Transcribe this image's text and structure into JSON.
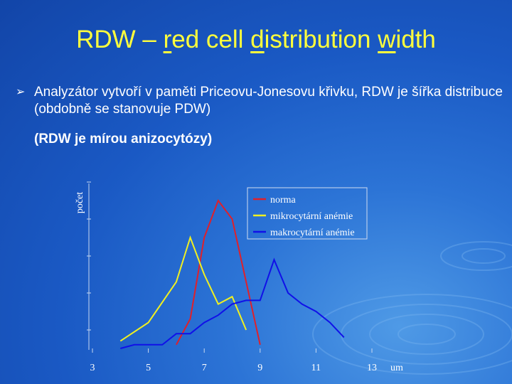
{
  "title_parts": [
    "RDW – ",
    "r",
    "ed cell ",
    "d",
    "istribution ",
    "w",
    "idth"
  ],
  "bullet": {
    "text": "Analyzátor vytvoří v paměti Priceovu-Jonesovu křivku, RDW je šířka distribuce (obdobně se stanovuje PDW)",
    "note": "(RDW je mírou anizocytózy)"
  },
  "chart_data": {
    "type": "line",
    "y_label": "počet",
    "x_label": "um",
    "xlim": [
      3,
      13
    ],
    "xticks": [
      3,
      5,
      7,
      9,
      11,
      13
    ],
    "ylim": [
      0,
      5
    ],
    "yticks": [
      1,
      2,
      3,
      4,
      5
    ],
    "legend": "top-right",
    "series": [
      {
        "name": "norma",
        "color": "#e0202a",
        "x": [
          6,
          6.5,
          7,
          7.5,
          8,
          8.5,
          9
        ],
        "values": [
          0.6,
          1.3,
          3.5,
          4.5,
          4.0,
          2.3,
          0.6
        ]
      },
      {
        "name": "mikrocytární anémie",
        "color": "#f0f020",
        "x": [
          4,
          5,
          6,
          6.5,
          7,
          7.5,
          8,
          8.5
        ],
        "values": [
          0.7,
          1.2,
          2.3,
          3.5,
          2.5,
          1.7,
          1.9,
          1.0
        ]
      },
      {
        "name": "makrocytární anémie",
        "color": "#1010e8",
        "x": [
          4,
          4.5,
          5.5,
          6,
          6.5,
          7,
          7.5,
          8,
          8.5,
          9,
          9.5,
          10,
          10.5,
          11,
          11.5,
          12
        ],
        "values": [
          0.5,
          0.6,
          0.6,
          0.9,
          0.9,
          1.2,
          1.4,
          1.7,
          1.8,
          1.8,
          2.9,
          2.0,
          1.7,
          1.5,
          1.2,
          0.8
        ]
      }
    ]
  }
}
